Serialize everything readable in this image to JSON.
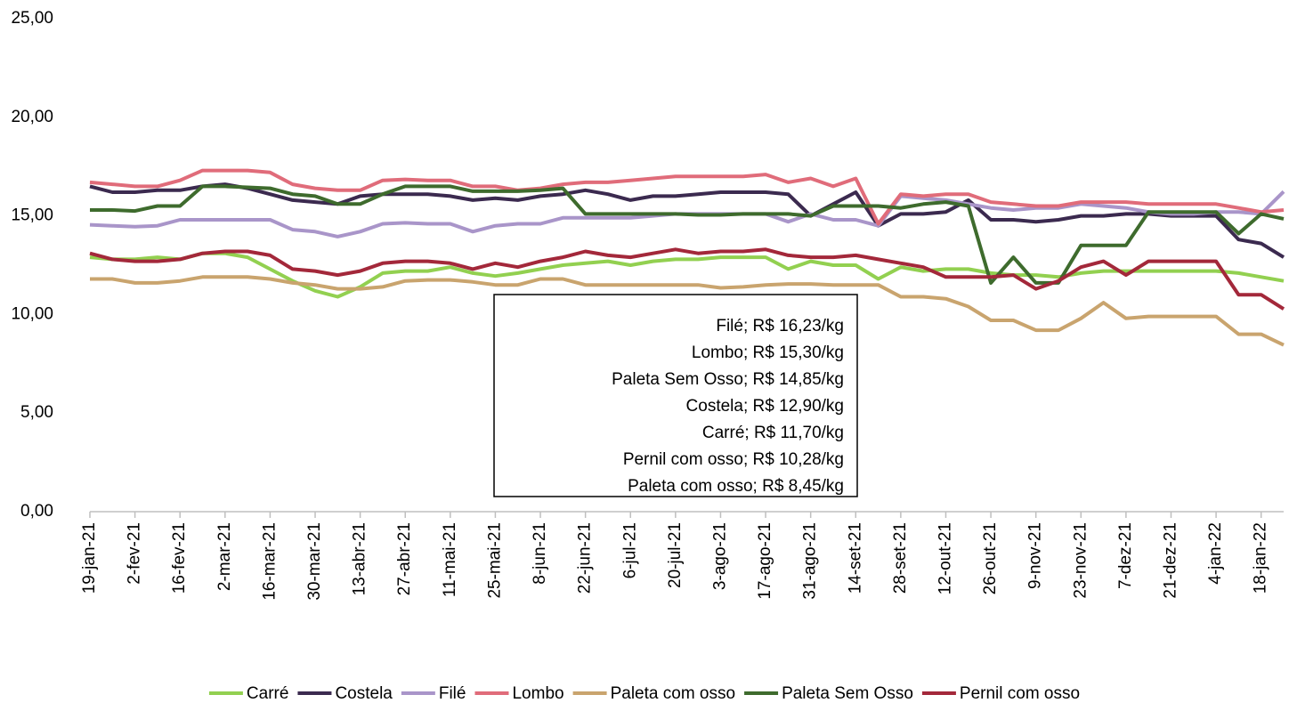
{
  "chart_data": {
    "type": "line",
    "categories": [
      "19-jan-21",
      null,
      "2-fev-21",
      null,
      "16-fev-21",
      null,
      "2-mar-21",
      null,
      "16-mar-21",
      null,
      "30-mar-21",
      null,
      "13-abr-21",
      null,
      "27-abr-21",
      null,
      "11-mai-21",
      null,
      "25-mai-21",
      null,
      "8-jun-21",
      null,
      "22-jun-21",
      null,
      "6-jul-21",
      null,
      "20-jul-21",
      null,
      "3-ago-21",
      null,
      "17-ago-21",
      null,
      "31-ago-21",
      null,
      "14-set-21",
      null,
      "28-set-21",
      null,
      "12-out-21",
      null,
      "26-out-21",
      null,
      "9-nov-21",
      null,
      "23-nov-21",
      null,
      "7-dez-21",
      null,
      "21-dez-21",
      null,
      "4-jan-22",
      null,
      "18-jan-22",
      null
    ],
    "series": [
      {
        "name": "Carré",
        "color": "#92d050",
        "values": [
          12.9,
          12.8,
          12.8,
          12.9,
          12.8,
          13.1,
          13.1,
          12.9,
          12.3,
          11.7,
          11.2,
          10.9,
          11.4,
          12.1,
          12.2,
          12.2,
          12.4,
          12.1,
          11.95,
          12.1,
          12.3,
          12.5,
          12.6,
          12.7,
          12.5,
          12.7,
          12.8,
          12.8,
          12.9,
          12.9,
          12.9,
          12.3,
          12.7,
          12.5,
          12.5,
          11.8,
          12.4,
          12.2,
          12.3,
          12.3,
          12.1,
          12.0,
          12.0,
          11.9,
          12.1,
          12.2,
          12.2,
          12.2,
          12.2,
          12.2,
          12.2,
          12.1,
          11.9,
          11.7
        ]
      },
      {
        "name": "Costela",
        "color": "#3b2a4f",
        "values": [
          16.5,
          16.2,
          16.2,
          16.3,
          16.3,
          16.5,
          16.6,
          16.4,
          16.1,
          15.8,
          15.7,
          15.6,
          16.0,
          16.1,
          16.1,
          16.1,
          16.0,
          15.8,
          15.9,
          15.8,
          16.0,
          16.1,
          16.3,
          16.1,
          15.8,
          16.0,
          16.0,
          16.1,
          16.2,
          16.2,
          16.2,
          16.1,
          15.0,
          15.6,
          16.2,
          14.5,
          15.1,
          15.1,
          15.2,
          15.8,
          14.8,
          14.8,
          14.7,
          14.8,
          15.0,
          15.0,
          15.1,
          15.1,
          15.0,
          15.0,
          15.0,
          13.8,
          13.6,
          12.9
        ]
      },
      {
        "name": "Filé",
        "color": "#a995c9",
        "values": [
          14.55,
          14.5,
          14.45,
          14.5,
          14.8,
          14.8,
          14.8,
          14.8,
          14.8,
          14.3,
          14.2,
          13.95,
          14.2,
          14.6,
          14.65,
          14.6,
          14.6,
          14.2,
          14.5,
          14.6,
          14.6,
          14.9,
          14.9,
          14.9,
          14.9,
          15.0,
          15.1,
          15.1,
          15.1,
          15.1,
          15.1,
          14.7,
          15.1,
          14.8,
          14.8,
          14.5,
          16.0,
          15.9,
          15.8,
          15.6,
          15.4,
          15.3,
          15.4,
          15.4,
          15.6,
          15.5,
          15.4,
          15.2,
          15.1,
          15.1,
          15.2,
          15.2,
          15.1,
          16.23
        ]
      },
      {
        "name": "Lombo",
        "color": "#e06c7a",
        "values": [
          16.7,
          16.6,
          16.5,
          16.5,
          16.8,
          17.3,
          17.3,
          17.3,
          17.2,
          16.6,
          16.4,
          16.3,
          16.3,
          16.8,
          16.85,
          16.8,
          16.8,
          16.5,
          16.5,
          16.3,
          16.4,
          16.6,
          16.7,
          16.7,
          16.8,
          16.9,
          17.0,
          17.0,
          17.0,
          17.0,
          17.1,
          16.7,
          16.9,
          16.5,
          16.9,
          14.6,
          16.1,
          16.0,
          16.1,
          16.1,
          15.7,
          15.6,
          15.5,
          15.5,
          15.7,
          15.7,
          15.7,
          15.6,
          15.6,
          15.6,
          15.6,
          15.4,
          15.2,
          15.3
        ]
      },
      {
        "name": "Paleta com osso",
        "color": "#c9a46e",
        "values": [
          11.8,
          11.8,
          11.6,
          11.6,
          11.7,
          11.9,
          11.9,
          11.9,
          11.8,
          11.6,
          11.5,
          11.3,
          11.3,
          11.4,
          11.7,
          11.75,
          11.75,
          11.65,
          11.5,
          11.5,
          11.8,
          11.8,
          11.5,
          11.5,
          11.5,
          11.5,
          11.5,
          11.5,
          11.35,
          11.4,
          11.5,
          11.55,
          11.55,
          11.5,
          11.5,
          11.5,
          10.9,
          10.9,
          10.8,
          10.4,
          9.7,
          9.7,
          9.2,
          9.2,
          9.8,
          10.6,
          9.8,
          9.9,
          9.9,
          9.9,
          9.9,
          9.0,
          9.0,
          8.45
        ]
      },
      {
        "name": "Paleta Sem Osso",
        "color": "#3e6b2d",
        "values": [
          15.3,
          15.3,
          15.25,
          15.5,
          15.5,
          16.5,
          16.5,
          16.45,
          16.4,
          16.1,
          16.0,
          15.6,
          15.6,
          16.1,
          16.5,
          16.5,
          16.5,
          16.25,
          16.25,
          16.25,
          16.3,
          16.4,
          15.1,
          15.1,
          15.1,
          15.1,
          15.1,
          15.05,
          15.05,
          15.1,
          15.1,
          15.1,
          15.0,
          15.5,
          15.5,
          15.5,
          15.4,
          15.6,
          15.7,
          15.5,
          11.6,
          12.9,
          11.6,
          11.6,
          13.5,
          13.5,
          13.5,
          15.2,
          15.2,
          15.2,
          15.2,
          14.1,
          15.1,
          14.85
        ]
      },
      {
        "name": "Pernil com osso",
        "color": "#a3283a",
        "values": [
          13.1,
          12.8,
          12.7,
          12.7,
          12.8,
          13.1,
          13.2,
          13.2,
          13.0,
          12.3,
          12.2,
          12.0,
          12.2,
          12.6,
          12.7,
          12.7,
          12.6,
          12.3,
          12.6,
          12.4,
          12.7,
          12.9,
          13.2,
          13.0,
          12.9,
          13.1,
          13.3,
          13.1,
          13.2,
          13.2,
          13.3,
          13.0,
          12.9,
          12.9,
          13.0,
          12.8,
          12.6,
          12.4,
          11.9,
          11.9,
          11.9,
          12.0,
          11.3,
          11.7,
          12.4,
          12.7,
          12.0,
          12.7,
          12.7,
          12.7,
          12.7,
          11.0,
          11.0,
          10.28
        ]
      }
    ],
    "ylim": [
      0,
      25
    ],
    "yticks": [
      {
        "value": 0,
        "label": "0,00"
      },
      {
        "value": 5,
        "label": "5,00"
      },
      {
        "value": 10,
        "label": "10,00"
      },
      {
        "value": 15,
        "label": "15,00"
      },
      {
        "value": 20,
        "label": "20,00"
      },
      {
        "value": 25,
        "label": "25,00"
      }
    ],
    "grid": false,
    "legend": "bottom",
    "annotations": [
      "Filé; R$ 16,23/kg",
      "Lombo; R$ 15,30/kg",
      "Paleta Sem Osso; R$ 14,85/kg",
      "Costela; R$ 12,90/kg",
      "Carré; R$ 11,70/kg",
      "Pernil com osso; R$ 10,28/kg",
      "Paleta com osso; R$ 8,45/kg"
    ]
  }
}
